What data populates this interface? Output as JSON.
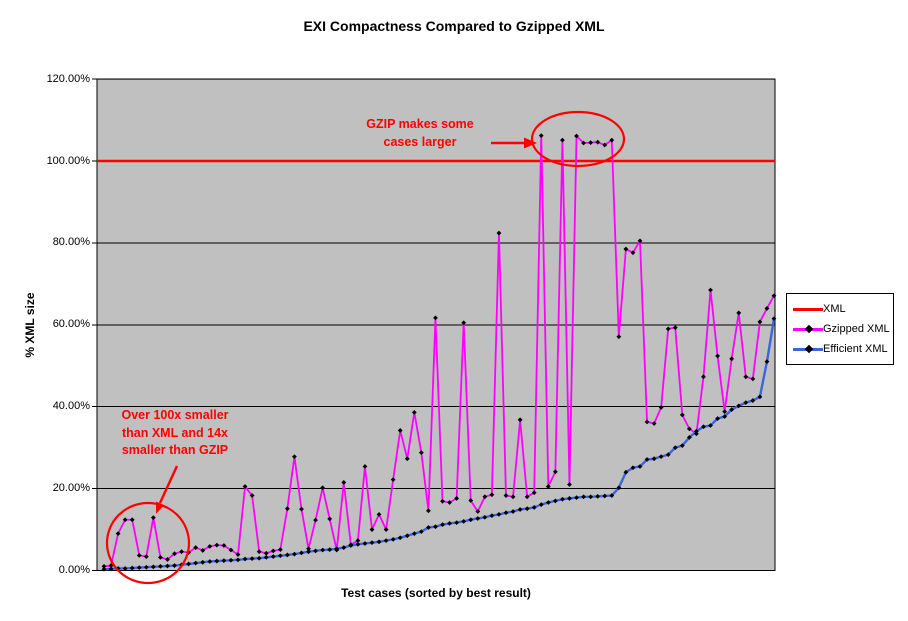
{
  "title": "EXI Compactness Compared to Gzipped XML",
  "y_axis": {
    "title": "% XML size",
    "tick_labels": [
      "120.00%",
      "100.00%",
      "80.00%",
      "60.00%",
      "40.00%",
      "20.00%",
      "0.00%"
    ],
    "min": 0,
    "max": 120,
    "step": 20
  },
  "x_axis": {
    "title": "Test cases (sorted by best result)"
  },
  "legend": [
    {
      "label": "XML",
      "color": "#ff0000",
      "marker": false
    },
    {
      "label": "Gzipped XML",
      "color": "#ff00ff",
      "marker": true
    },
    {
      "label": "Efficient XML",
      "color": "#3c64dc",
      "marker": true
    }
  ],
  "annotations": [
    {
      "id": "ann-gzip",
      "lines": [
        "GZIP makes some",
        "cases larger"
      ]
    },
    {
      "id": "ann-exi",
      "lines": [
        "Over 100x smaller",
        "than XML and 14x",
        "smaller than GZIP"
      ]
    }
  ],
  "colors": {
    "xml_line": "#ff0000",
    "gzip_line": "#ff00ff",
    "exi_line": "#3c64dc",
    "marker": "#000000",
    "plot_background": "#c0c0c0",
    "gridline": "#000000",
    "annotation": "#ff0000"
  },
  "chart_data": {
    "type": "line",
    "title": "EXI Compactness Compared to Gzipped XML",
    "xlabel": "Test cases (sorted by best result)",
    "ylabel": "% XML size",
    "ylim": [
      0,
      120
    ],
    "ytick_step": 20,
    "grid": "horizontal",
    "legend_position": "right",
    "x_unit": "test case index (1-96, sorted by best result)",
    "series": [
      {
        "name": "XML",
        "style": "constant-line",
        "value": 100
      },
      {
        "name": "Gzipped XML",
        "style": "line-with-diamond-markers",
        "values": [
          1.0,
          1.2,
          9.0,
          12.4,
          12.4,
          3.7,
          3.4,
          12.9,
          3.2,
          2.7,
          4.1,
          4.6,
          4.4,
          5.6,
          4.9,
          5.9,
          6.2,
          6.1,
          5.0,
          3.9,
          20.5,
          18.3,
          4.6,
          4.2,
          4.8,
          5.1,
          15.1,
          27.8,
          15.0,
          5.3,
          12.3,
          20.2,
          12.6,
          5.0,
          21.5,
          6.3,
          7.3,
          25.4,
          10.0,
          13.7,
          10.0,
          22.2,
          34.2,
          27.3,
          38.6,
          28.8,
          14.6,
          61.7,
          16.9,
          16.6,
          17.6,
          60.5,
          17.1,
          14.4,
          18.0,
          18.5,
          82.4,
          18.3,
          18.0,
          36.8,
          18.0,
          19.0,
          106.2,
          20.5,
          24.1,
          105.1,
          21.0,
          106.1,
          104.4,
          104.5,
          104.6,
          103.9,
          105.1,
          57.1,
          78.5,
          77.6,
          80.5,
          36.3,
          35.9,
          39.8,
          59.0,
          59.3,
          38.0,
          34.6,
          33.4,
          47.3,
          68.5,
          52.4,
          38.8,
          51.7,
          62.9,
          47.3,
          46.8,
          60.7,
          64.0,
          67.1
        ]
      },
      {
        "name": "Efficient XML",
        "style": "line-with-diamond-markers",
        "values": [
          0.3,
          0.4,
          0.5,
          0.5,
          0.6,
          0.7,
          0.8,
          0.9,
          1.0,
          1.1,
          1.2,
          1.4,
          1.6,
          1.8,
          2.0,
          2.2,
          2.3,
          2.4,
          2.5,
          2.6,
          2.8,
          2.9,
          3.0,
          3.2,
          3.4,
          3.6,
          3.8,
          4.0,
          4.3,
          4.6,
          4.8,
          5.0,
          5.1,
          5.3,
          5.6,
          6.1,
          6.4,
          6.6,
          6.8,
          7.0,
          7.3,
          7.6,
          8.0,
          8.5,
          9.0,
          9.5,
          10.5,
          10.7,
          11.2,
          11.5,
          11.7,
          12.0,
          12.4,
          12.7,
          13.0,
          13.4,
          13.7,
          14.1,
          14.4,
          14.9,
          15.1,
          15.4,
          16.1,
          16.6,
          17.0,
          17.4,
          17.6,
          17.8,
          18.0,
          18.0,
          18.1,
          18.2,
          18.3,
          20.2,
          24.0,
          25.1,
          25.4,
          27.1,
          27.3,
          27.8,
          28.3,
          30.0,
          30.5,
          32.5,
          34.0,
          35.1,
          35.4,
          37.1,
          37.6,
          39.3,
          40.2,
          41.0,
          41.5,
          42.4,
          51.0,
          61.5
        ]
      }
    ]
  }
}
